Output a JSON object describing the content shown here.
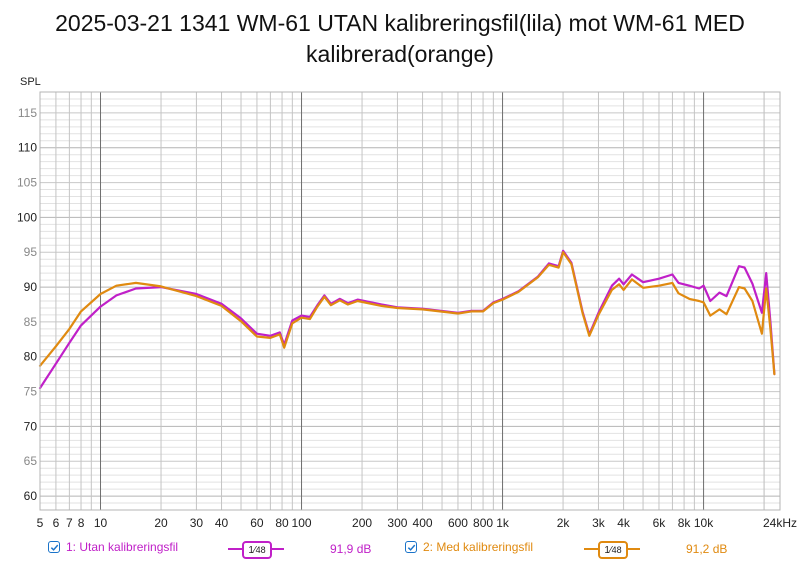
{
  "title": "2025-03-21 1341 WM-61 UTAN kalibreringsfil(lila) mot WM-61 MED kalibrerad(orange)",
  "legend": [
    {
      "label": "1: Utan kalibreringsfil",
      "checked": true,
      "color": "#c020c8",
      "smoothing": "1/48",
      "smoothing_num": "1",
      "smoothing_den": "48",
      "level": "91,9 dB"
    },
    {
      "label": "2: Med kalibreringsfil",
      "checked": true,
      "color": "#e08a10",
      "smoothing": "1/48",
      "smoothing_num": "1",
      "smoothing_den": "48",
      "level": "91,2 dB"
    }
  ],
  "chart_data": {
    "type": "line",
    "title": "2025-03-21 1341 WM-61 UTAN kalibreringsfil(lila) mot WM-61 MED kalibrerad(orange)",
    "xlabel": "Hz",
    "ylabel": "SPL",
    "x_scale": "log",
    "xlim": [
      5,
      24000
    ],
    "ylim": [
      58,
      118
    ],
    "grid": true,
    "y_ticks": [
      60,
      65,
      70,
      75,
      80,
      85,
      90,
      95,
      100,
      105,
      110,
      115
    ],
    "y_major_ticks": [
      60,
      70,
      80,
      90,
      100,
      110
    ],
    "x_tick_labels": [
      {
        "f": 5,
        "label": "5"
      },
      {
        "f": 6,
        "label": "6"
      },
      {
        "f": 7,
        "label": "7"
      },
      {
        "f": 8,
        "label": "8"
      },
      {
        "f": 10,
        "label": "10"
      },
      {
        "f": 20,
        "label": "20"
      },
      {
        "f": 30,
        "label": "30"
      },
      {
        "f": 40,
        "label": "40"
      },
      {
        "f": 60,
        "label": "60"
      },
      {
        "f": 80,
        "label": "80"
      },
      {
        "f": 100,
        "label": "100"
      },
      {
        "f": 200,
        "label": "200"
      },
      {
        "f": 300,
        "label": "300"
      },
      {
        "f": 400,
        "label": "400"
      },
      {
        "f": 600,
        "label": "600"
      },
      {
        "f": 800,
        "label": "800"
      },
      {
        "f": 1000,
        "label": "1k"
      },
      {
        "f": 2000,
        "label": "2k"
      },
      {
        "f": 3000,
        "label": "3k"
      },
      {
        "f": 4000,
        "label": "4k"
      },
      {
        "f": 6000,
        "label": "6k"
      },
      {
        "f": 8000,
        "label": "8k"
      },
      {
        "f": 10000,
        "label": "10k"
      },
      {
        "f": 24000,
        "label": "24kHz"
      }
    ],
    "x": [
      5,
      6,
      7,
      8,
      10,
      12,
      15,
      20,
      30,
      40,
      50,
      60,
      70,
      78,
      82,
      90,
      100,
      110,
      120,
      130,
      140,
      155,
      170,
      190,
      250,
      300,
      400,
      600,
      700,
      800,
      900,
      1000,
      1200,
      1500,
      1700,
      1900,
      2000,
      2200,
      2500,
      2700,
      3000,
      3500,
      3800,
      4000,
      4400,
      5000,
      6000,
      7000,
      7500,
      8500,
      9500,
      10000,
      10800,
      12000,
      13000,
      15000,
      16000,
      17500,
      19500,
      20500,
      21500,
      22500
    ],
    "series": [
      {
        "name": "1: Utan kalibreringsfil",
        "color": "#c020c8",
        "values": [
          75.5,
          79,
          82,
          84.5,
          87.2,
          88.8,
          89.8,
          90,
          89,
          87.6,
          85.5,
          83.3,
          83.0,
          83.5,
          81.7,
          85.2,
          85.9,
          85.7,
          87.4,
          88.8,
          87.6,
          88.3,
          87.7,
          88.2,
          87.5,
          87.1,
          86.9,
          86.3,
          86.6,
          86.6,
          87.8,
          88.3,
          89.4,
          91.5,
          93.4,
          93.0,
          95.2,
          93.5,
          86.5,
          83.2,
          86.3,
          90.2,
          91.2,
          90.4,
          91.8,
          90.7,
          91.2,
          91.8,
          90.6,
          90.2,
          89.8,
          90.2,
          88.0,
          89.2,
          88.7,
          93.0,
          92.8,
          90.5,
          86.3,
          92.0,
          85.0,
          77.5
        ]
      },
      {
        "name": "2: Med kalibreringsfil",
        "color": "#e08a10",
        "values": [
          78.7,
          81.5,
          84,
          86.5,
          89,
          90.2,
          90.6,
          90.1,
          88.7,
          87.3,
          85.1,
          82.9,
          82.7,
          83.2,
          81.3,
          84.8,
          85.6,
          85.4,
          87.2,
          88.6,
          87.4,
          88.1,
          87.5,
          88.0,
          87.3,
          87.0,
          86.8,
          86.2,
          86.5,
          86.5,
          87.7,
          88.2,
          89.3,
          91.4,
          93.2,
          92.8,
          95.0,
          93.3,
          86.3,
          83.0,
          86.0,
          89.6,
          90.4,
          89.6,
          91.1,
          89.9,
          90.2,
          90.6,
          89.1,
          88.3,
          88.0,
          87.8,
          85.9,
          86.8,
          86.1,
          90.0,
          89.8,
          88.0,
          83.3,
          89.8,
          84.0,
          77.5
        ]
      }
    ]
  }
}
